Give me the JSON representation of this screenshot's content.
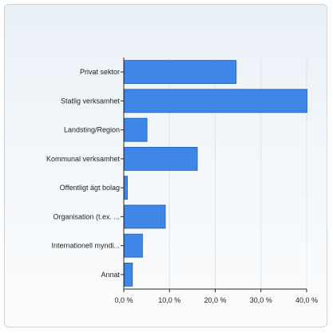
{
  "chart_data": {
    "type": "bar",
    "orientation": "horizontal",
    "categories": [
      "Privat sektor",
      "Statlig verksamhet",
      "Landsting/Region",
      "Kommunal verksamhet",
      "Offentligt ägt bolag",
      "Organisation (t.ex. ...",
      "Internationell myndi...",
      "Annat"
    ],
    "values": [
      24.5,
      40.0,
      5.0,
      16.0,
      0.7,
      9.0,
      4.0,
      1.8
    ],
    "xlim": [
      0,
      40
    ],
    "x_ticks": [
      0,
      10,
      20,
      30,
      40
    ],
    "x_tick_labels": [
      "0,0 %",
      "10,0 %",
      "20,0 %",
      "30,0 %",
      "40,0 %"
    ],
    "grid": true,
    "title": "",
    "xlabel": "",
    "ylabel": "",
    "colors": {
      "bar_fill": "#3f86e6",
      "bar_stroke": "#1f5db8",
      "grid": "#dfe4ea",
      "axis": "#2a2a2a"
    }
  }
}
